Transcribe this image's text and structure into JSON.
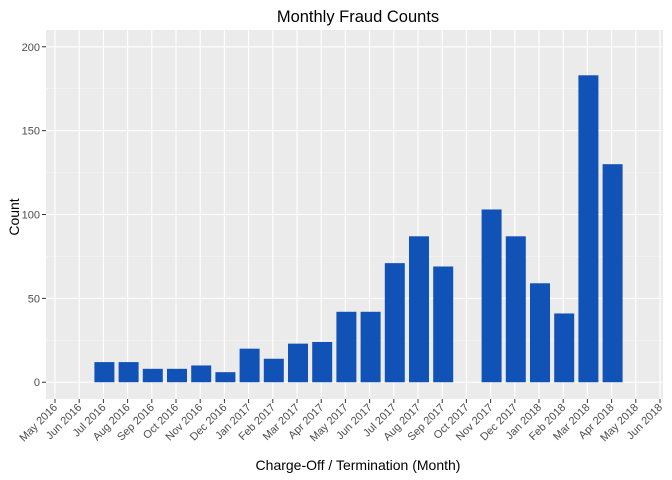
{
  "chart_data": {
    "type": "bar",
    "title": "Monthly Fraud Counts",
    "xlabel": "Charge-Off / Termination (Month)",
    "ylabel": "Count",
    "ylim": [
      -10,
      210
    ],
    "yticks": [
      0,
      50,
      100,
      150,
      200
    ],
    "grid": true,
    "x_ticks": [
      "May 2016",
      "Jun 2016",
      "Jul 2016",
      "Aug 2016",
      "Sep 2016",
      "Oct 2016",
      "Nov 2016",
      "Dec 2016",
      "Jan 2017",
      "Feb 2017",
      "Mar 2017",
      "Apr 2017",
      "May 2017",
      "Jun 2017",
      "Jul 2017",
      "Aug 2017",
      "Sep 2017",
      "Oct 2017",
      "Nov 2017",
      "Dec 2017",
      "Jan 2018",
      "Feb 2018",
      "Mar 2018",
      "Apr 2018",
      "May 2018",
      "Jun 2018"
    ],
    "categories": [
      "Jul 2016",
      "Aug 2016",
      "Sep 2016",
      "Oct 2016",
      "Nov 2016",
      "Dec 2016",
      "Jan 2017",
      "Feb 2017",
      "Mar 2017",
      "Apr 2017",
      "May 2017",
      "Jun 2017",
      "Jul 2017",
      "Aug 2017",
      "Sep 2017",
      "Nov 2017",
      "Dec 2017",
      "Jan 2018",
      "Feb 2018",
      "Mar 2018",
      "Apr 2018"
    ],
    "values": [
      12,
      12,
      8,
      8,
      10,
      6,
      20,
      14,
      23,
      24,
      42,
      42,
      71,
      87,
      69,
      103,
      87,
      59,
      41,
      183,
      130
    ],
    "colors": {
      "bar": "#1152b6",
      "panel": "#ebebeb",
      "grid_major": "#ffffff",
      "grid_minor": "#f5f5f5"
    }
  }
}
